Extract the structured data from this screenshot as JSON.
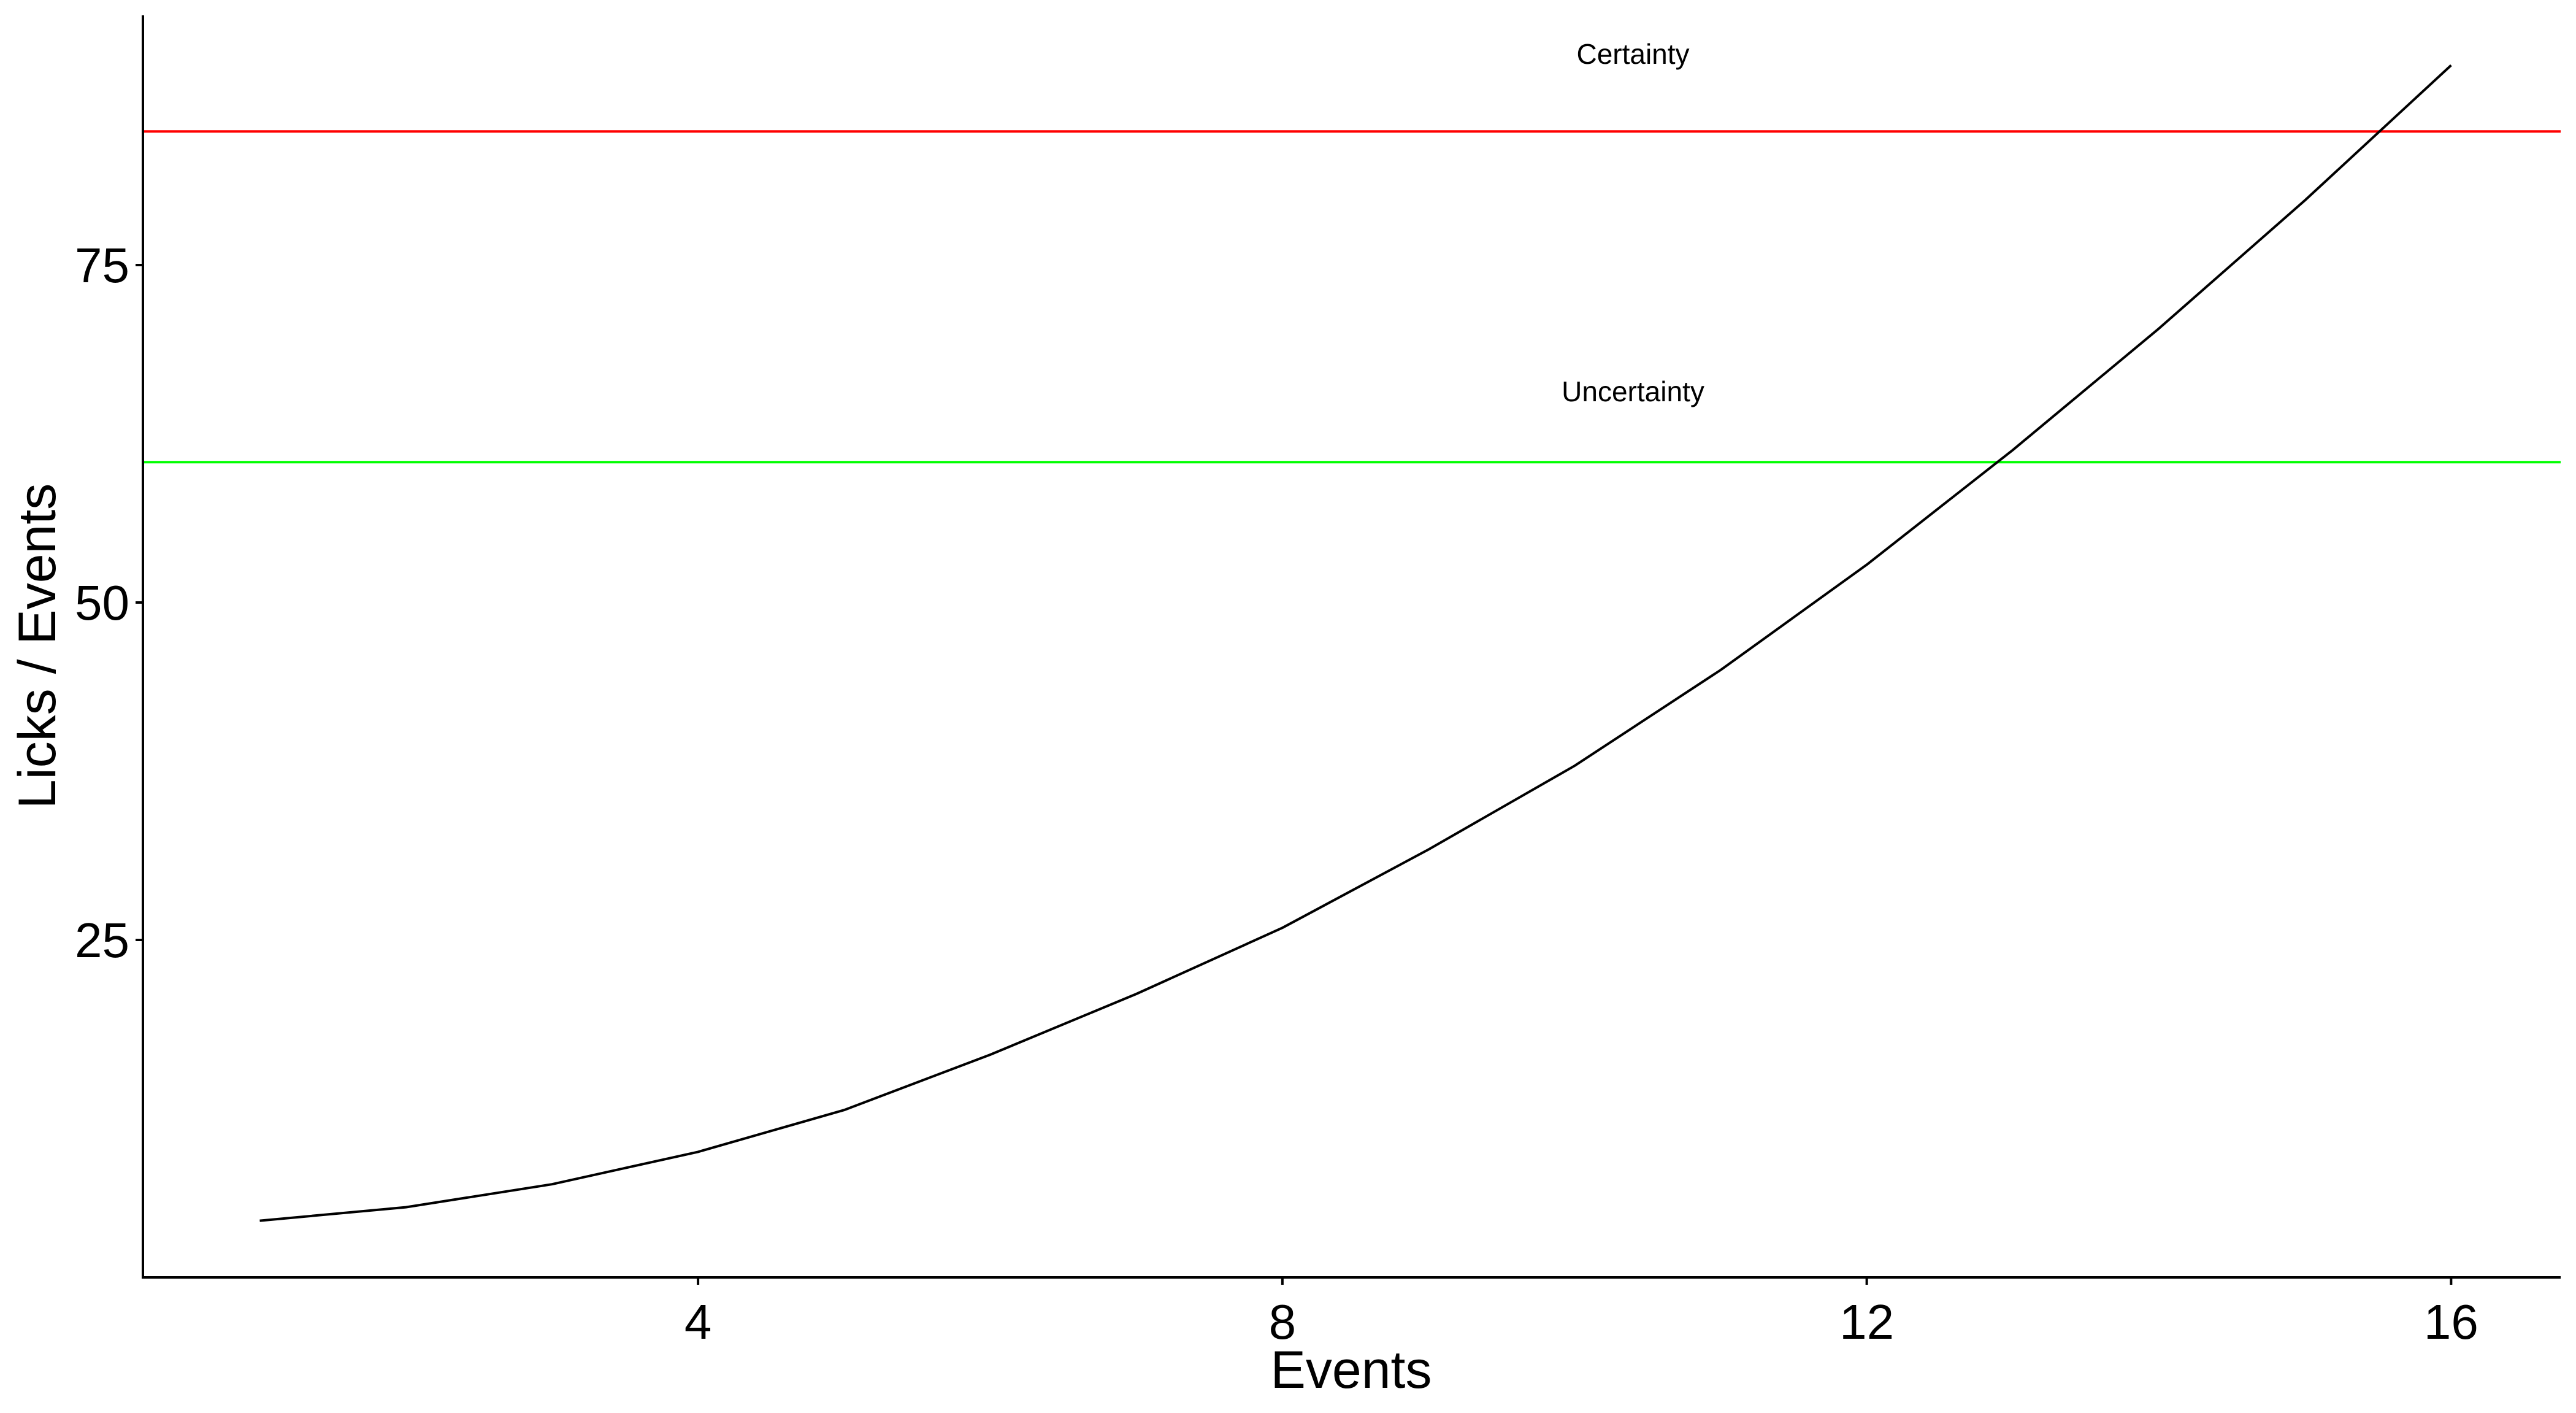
{
  "chart_data": {
    "type": "line",
    "title": "",
    "xlabel": "Events",
    "ylabel": "Licks / Events",
    "xlim": [
      0.2,
      16.75
    ],
    "ylim": [
      0,
      93.5
    ],
    "x_ticks": [
      4,
      8,
      12,
      16
    ],
    "y_ticks": [
      25,
      50,
      75
    ],
    "grid": false,
    "series": [
      {
        "x": [
          1,
          2,
          3,
          4,
          5,
          6,
          7,
          8,
          9,
          10,
          11,
          12,
          13,
          14,
          15,
          16
        ],
        "y": [
          4.2,
          5.2,
          6.9,
          9.3,
          12.4,
          16.5,
          21.0,
          25.9,
          31.7,
          37.9,
          45.0,
          52.8,
          61.3,
          70.3,
          79.8,
          89.8
        ],
        "color": "#000000"
      }
    ],
    "reference_lines": [
      {
        "label": "Certainty",
        "y": 84.9,
        "color": "#ff0000",
        "label_x": 10.4,
        "label_y": 89.9
      },
      {
        "label": "Uncertainty",
        "y": 60.4,
        "color": "#00ff00",
        "label_x": 10.4,
        "label_y": 64.9
      }
    ]
  }
}
